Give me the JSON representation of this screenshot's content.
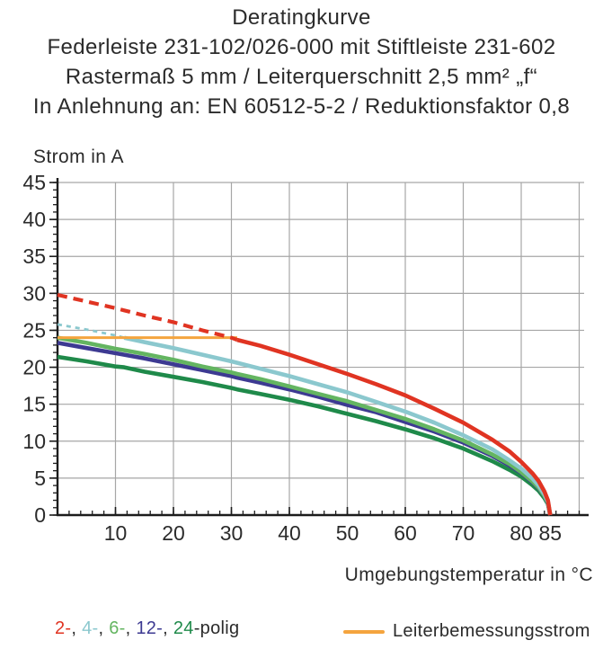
{
  "header": {
    "title": "Deratingkurve",
    "line2": "Federleiste 231-102/026-000 mit Stiftleiste 231-602",
    "line3": "Rastermaß 5 mm / Leiterquerschnitt 2,5 mm² „f“",
    "line4": "In Anlehnung an: EN 60512-5-2 / Reduktionsfaktor 0,8"
  },
  "chart_data": {
    "type": "line",
    "title": "Deratingkurve",
    "ylabel": "Strom in A",
    "xlabel": "Umgebungstemperatur in °C",
    "xlim": [
      0,
      92
    ],
    "ylim": [
      0,
      45
    ],
    "x_ticks": [
      10,
      20,
      30,
      40,
      50,
      60,
      70,
      80,
      85
    ],
    "x_minor_step": 2,
    "y_ticks": [
      0,
      5,
      10,
      15,
      20,
      25,
      30,
      35,
      40,
      45
    ],
    "y_minor_step": 1,
    "grid": true,
    "legend_position": "bottom",
    "x": [
      0,
      5,
      10,
      11.5,
      15,
      20,
      25,
      30,
      31,
      35,
      40,
      45,
      50,
      55,
      60,
      65,
      70,
      75,
      78,
      80,
      82,
      83,
      84,
      84.6,
      85
    ],
    "series": [
      {
        "name": "2-polig",
        "color": "#e03422",
        "dash_until": 31,
        "values": [
          29.8,
          28.9,
          28.0,
          27.7,
          27.0,
          26.1,
          25.0,
          24.0,
          23.7,
          22.9,
          21.7,
          20.4,
          19.1,
          17.7,
          16.2,
          14.4,
          12.5,
          10.2,
          8.6,
          7.2,
          5.6,
          4.6,
          3.2,
          2.0,
          0
        ]
      },
      {
        "name": "4-polig",
        "color": "#8bc8ce",
        "dash_until": 11.5,
        "values": [
          25.8,
          25.1,
          24.3,
          24.0,
          23.4,
          22.6,
          21.7,
          20.8,
          20.6,
          19.8,
          18.8,
          17.7,
          16.6,
          15.3,
          14.0,
          12.5,
          10.8,
          8.9,
          7.4,
          6.3,
          4.9,
          4.0,
          2.8,
          1.8,
          0
        ]
      },
      {
        "name": "6-polig",
        "color": "#64b561",
        "dash_until": 0,
        "values": [
          24.0,
          23.3,
          22.5,
          22.3,
          21.8,
          21.0,
          20.1,
          19.3,
          19.1,
          18.4,
          17.4,
          16.4,
          15.4,
          14.2,
          13.0,
          11.6,
          10.1,
          8.2,
          6.9,
          5.8,
          4.5,
          3.7,
          2.6,
          1.7,
          0
        ]
      },
      {
        "name": "12-polig",
        "color": "#3d3a92",
        "dash_until": 0,
        "values": [
          23.3,
          22.6,
          21.9,
          21.7,
          21.2,
          20.4,
          19.6,
          18.8,
          18.6,
          17.9,
          17.0,
          16.0,
          14.9,
          13.9,
          12.6,
          11.3,
          9.8,
          8.0,
          6.7,
          5.7,
          4.4,
          3.6,
          2.6,
          1.6,
          0
        ]
      },
      {
        "name": "24-polig",
        "color": "#1f8a4a",
        "dash_until": 0,
        "values": [
          21.4,
          20.8,
          20.1,
          20.0,
          19.4,
          18.7,
          18.0,
          17.2,
          17.0,
          16.4,
          15.6,
          14.7,
          13.7,
          12.7,
          11.6,
          10.4,
          9.0,
          7.3,
          6.1,
          5.2,
          4.0,
          3.3,
          2.3,
          1.5,
          0
        ]
      }
    ],
    "rated_line": {
      "name": "Leiterbemessungsstrom",
      "color": "#f4a43e",
      "value": 24,
      "x_start": 0,
      "x_end": 31
    }
  },
  "legend": {
    "poles": [
      {
        "label": "2-",
        "color": "#e03422"
      },
      {
        "label": "4-",
        "color": "#8bc8ce"
      },
      {
        "label": "6-",
        "color": "#64b561"
      },
      {
        "label": "12-",
        "color": "#3d3a92"
      },
      {
        "label": "24",
        "color": "#1f8a4a"
      }
    ],
    "separator": ", ",
    "suffix": "-polig",
    "rated_label": "Leiterbemessungsstrom"
  },
  "colors": {
    "grid": "#a6a6a6",
    "axis": "#1c1c1c",
    "text": "#2b2b2b"
  }
}
